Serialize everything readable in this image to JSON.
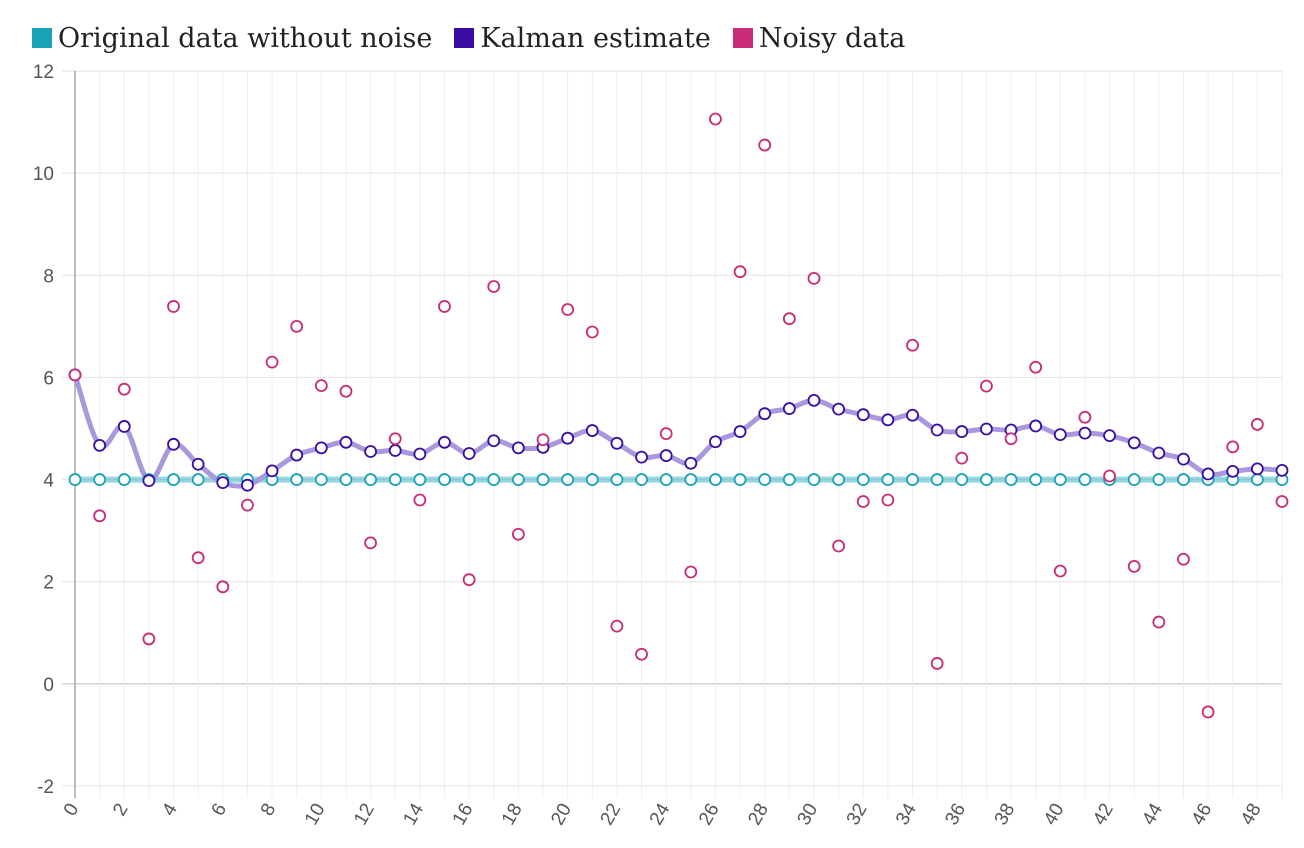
{
  "chart_data": {
    "type": "line",
    "title": "",
    "xlabel": "",
    "ylabel": "",
    "legend_position": "top-left",
    "grid": true,
    "xlim": [
      0,
      49
    ],
    "ylim": [
      -2,
      12
    ],
    "y_ticks": [
      "-2",
      "0",
      "2",
      "4",
      "6",
      "8",
      "10",
      "12"
    ],
    "x_ticks": [
      "0",
      "2",
      "4",
      "6",
      "8",
      "10",
      "12",
      "14",
      "16",
      "18",
      "20",
      "22",
      "24",
      "26",
      "28",
      "30",
      "32",
      "34",
      "36",
      "38",
      "40",
      "42",
      "44",
      "46",
      "48"
    ],
    "x": [
      0,
      1,
      2,
      3,
      4,
      5,
      6,
      7,
      8,
      9,
      10,
      11,
      12,
      13,
      14,
      15,
      16,
      17,
      18,
      19,
      20,
      21,
      22,
      23,
      24,
      25,
      26,
      27,
      28,
      29,
      30,
      31,
      32,
      33,
      34,
      35,
      36,
      37,
      38,
      39,
      40,
      41,
      42,
      43,
      44,
      45,
      46,
      47,
      48,
      49
    ],
    "series": [
      {
        "name": "Original data without noise",
        "color": "#1aa3b8",
        "values": [
          4,
          4,
          4,
          4,
          4,
          4,
          4,
          4,
          4,
          4,
          4,
          4,
          4,
          4,
          4,
          4,
          4,
          4,
          4,
          4,
          4,
          4,
          4,
          4,
          4,
          4,
          4,
          4,
          4,
          4,
          4,
          4,
          4,
          4,
          4,
          4,
          4,
          4,
          4,
          4,
          4,
          4,
          4,
          4,
          4,
          4,
          4,
          4,
          4,
          4
        ]
      },
      {
        "name": "Kalman estimate",
        "color": "#3b0ca3",
        "line_color": "#a998dc",
        "values": [
          6.05,
          4.67,
          5.04,
          3.98,
          4.69,
          4.3,
          3.94,
          3.89,
          4.17,
          4.48,
          4.62,
          4.73,
          4.55,
          4.57,
          4.5,
          4.73,
          4.51,
          4.76,
          4.62,
          4.63,
          4.81,
          4.96,
          4.71,
          4.44,
          4.47,
          4.32,
          4.74,
          4.94,
          5.29,
          5.39,
          5.55,
          5.38,
          5.27,
          5.17,
          5.26,
          4.97,
          4.94,
          4.99,
          4.97,
          5.05,
          4.88,
          4.91,
          4.86,
          4.72,
          4.52,
          4.4,
          4.11,
          4.16,
          4.21,
          4.18
        ]
      },
      {
        "name": "Noisy data",
        "color": "#c92b79",
        "values": [
          6.05,
          3.29,
          5.77,
          0.88,
          7.39,
          2.47,
          1.9,
          3.5,
          6.3,
          7,
          5.84,
          5.73,
          2.76,
          4.8,
          3.6,
          7.39,
          2.04,
          7.78,
          2.93,
          4.78,
          7.33,
          6.89,
          1.13,
          0.58,
          4.9,
          2.19,
          11.06,
          8.07,
          10.55,
          7.15,
          7.94,
          2.7,
          3.57,
          3.6,
          6.63,
          0.4,
          4.42,
          5.83,
          4.8,
          6.2,
          2.21,
          5.22,
          4.07,
          2.3,
          1.21,
          2.44,
          -0.55,
          4.64,
          5.08,
          3.57
        ]
      }
    ]
  }
}
